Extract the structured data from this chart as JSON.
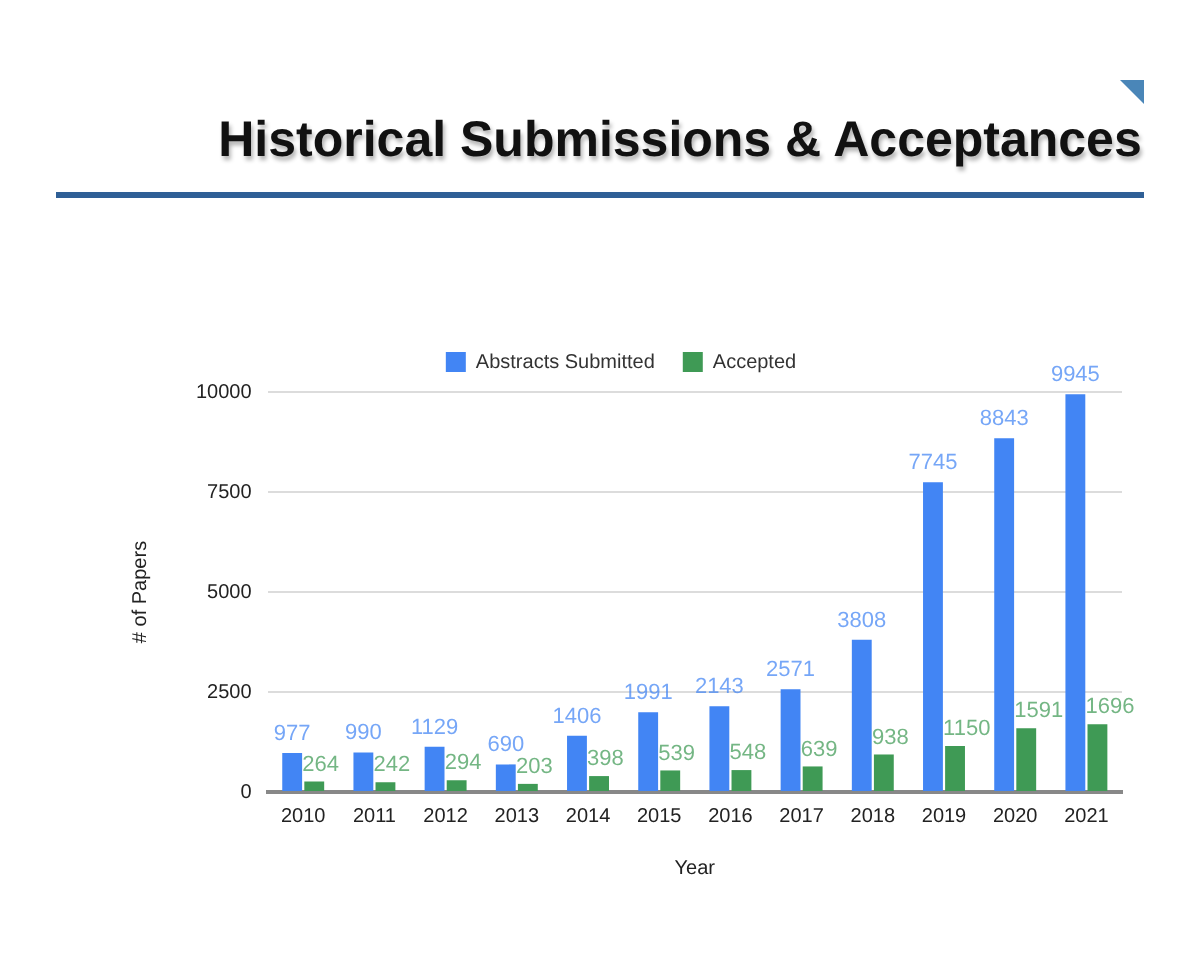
{
  "chart_data": {
    "type": "bar",
    "title": "Historical Submissions & Acceptances",
    "xlabel": "Year",
    "ylabel": "# of Papers",
    "categories": [
      "2010",
      "2011",
      "2012",
      "2013",
      "2014",
      "2015",
      "2016",
      "2017",
      "2018",
      "2019",
      "2020",
      "2021"
    ],
    "series": [
      {
        "name": "Abstracts Submitted",
        "color": "#4285f4",
        "values": [
          977,
          990,
          1129,
          690,
          1406,
          1991,
          2143,
          2571,
          3808,
          7745,
          8843,
          9945
        ]
      },
      {
        "name": "Accepted",
        "color": "#3f9a55",
        "values": [
          264,
          242,
          294,
          203,
          398,
          539,
          548,
          639,
          938,
          1150,
          1591,
          1696
        ]
      }
    ],
    "ylim": [
      0,
      10000
    ],
    "yticks": [
      0,
      2500,
      5000,
      7500,
      10000
    ],
    "grid": "y",
    "legend": "top",
    "data_labels": true
  }
}
